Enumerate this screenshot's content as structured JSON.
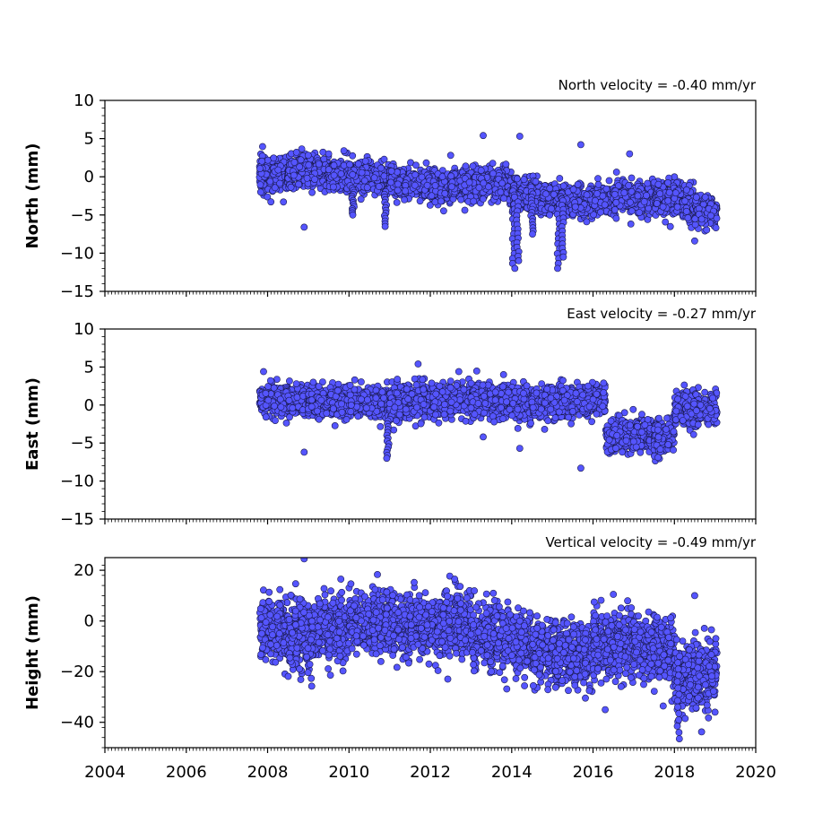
{
  "chart_data": [
    {
      "type": "scatter",
      "title": "North velocity = -0.40 mm/yr",
      "xlabel": "",
      "ylabel": "North (mm)",
      "xlim": [
        2004,
        2020
      ],
      "ylim": [
        -15,
        10
      ],
      "xticks": [
        2004,
        2006,
        2008,
        2010,
        2012,
        2014,
        2016,
        2018,
        2020
      ],
      "yticks": [
        10,
        5,
        0,
        -5,
        -10,
        -15
      ],
      "ytick_labels": [
        "10",
        "5",
        "0",
        "−5",
        "−10",
        "−15"
      ],
      "marker_color": "#5555ff",
      "marker_edge": "#1a1a4d",
      "segments": [
        {
          "x0": 2007.8,
          "x1": 2008.5,
          "y0": 0.3,
          "y1": 0.6,
          "spread": 1.1
        },
        {
          "x0": 2008.5,
          "x1": 2009.5,
          "y0": 0.6,
          "y1": 0.8,
          "spread": 1.0
        },
        {
          "x0": 2009.5,
          "x1": 2011.0,
          "y0": 0.5,
          "y1": -0.5,
          "spread": 1.0
        },
        {
          "x0": 2011.0,
          "x1": 2012.5,
          "y0": -0.5,
          "y1": -1.5,
          "spread": 1.0
        },
        {
          "x0": 2012.5,
          "x1": 2014.0,
          "y0": -1.2,
          "y1": -0.8,
          "spread": 1.1
        },
        {
          "x0": 2014.0,
          "x1": 2015.2,
          "y0": -2.2,
          "y1": -2.8,
          "spread": 1.0
        },
        {
          "x0": 2015.2,
          "x1": 2016.5,
          "y0": -3.5,
          "y1": -3.0,
          "spread": 1.0
        },
        {
          "x0": 2016.5,
          "x1": 2017.5,
          "y0": -2.5,
          "y1": -3.0,
          "spread": 1.1
        },
        {
          "x0": 2017.5,
          "x1": 2018.5,
          "y0": -2.5,
          "y1": -3.5,
          "spread": 1.1
        },
        {
          "x0": 2018.5,
          "x1": 2019.05,
          "y0": -4.0,
          "y1": -4.8,
          "spread": 1.0
        }
      ],
      "spikes": [
        {
          "x": 2010.1,
          "low": -5.0
        },
        {
          "x": 2010.9,
          "low": -6.5
        },
        {
          "x": 2014.05,
          "low": -12.0
        },
        {
          "x": 2014.15,
          "low": -11.0
        },
        {
          "x": 2014.5,
          "low": -7.5
        },
        {
          "x": 2015.15,
          "low": -12.0
        },
        {
          "x": 2015.25,
          "low": -10.5
        }
      ],
      "outliers": [
        [
          2013.3,
          5.4
        ],
        [
          2014.2,
          5.3
        ],
        [
          2015.7,
          4.2
        ],
        [
          2016.9,
          3.0
        ],
        [
          2008.9,
          -6.6
        ],
        [
          2018.5,
          -8.4
        ],
        [
          2009.5,
          3.0
        ],
        [
          2012.5,
          2.8
        ]
      ]
    },
    {
      "type": "scatter",
      "title": "East velocity = -0.27 mm/yr",
      "xlabel": "",
      "ylabel": "East (mm)",
      "xlim": [
        2004,
        2020
      ],
      "ylim": [
        -15,
        10
      ],
      "xticks": [
        2004,
        2006,
        2008,
        2010,
        2012,
        2014,
        2016,
        2018,
        2020
      ],
      "yticks": [
        10,
        5,
        0,
        -5,
        -10,
        -15
      ],
      "ytick_labels": [
        "10",
        "5",
        "0",
        "−5",
        "−10",
        "−15"
      ],
      "marker_color": "#5555ff",
      "marker_edge": "#1a1a4d",
      "segments": [
        {
          "x0": 2007.8,
          "x1": 2009.0,
          "y0": 0.8,
          "y1": 0.5,
          "spread": 1.0
        },
        {
          "x0": 2009.0,
          "x1": 2011.0,
          "y0": 0.5,
          "y1": 0.3,
          "spread": 1.0
        },
        {
          "x0": 2011.0,
          "x1": 2013.0,
          "y0": 0.3,
          "y1": 0.8,
          "spread": 1.1
        },
        {
          "x0": 2013.0,
          "x1": 2014.5,
          "y0": 0.8,
          "y1": 0.2,
          "spread": 1.1
        },
        {
          "x0": 2014.5,
          "x1": 2016.3,
          "y0": 0.3,
          "y1": 0.5,
          "spread": 1.0
        },
        {
          "x0": 2016.3,
          "x1": 2017.5,
          "y0": -4.0,
          "y1": -4.2,
          "spread": 1.0
        },
        {
          "x0": 2017.5,
          "x1": 2018.0,
          "y0": -4.2,
          "y1": -3.8,
          "spread": 1.0
        },
        {
          "x0": 2018.0,
          "x1": 2019.05,
          "y0": -0.8,
          "y1": -0.5,
          "spread": 1.0
        }
      ],
      "spikes": [
        {
          "x": 2010.95,
          "low": -7.0
        }
      ],
      "outliers": [
        [
          2007.9,
          4.4
        ],
        [
          2011.7,
          5.4
        ],
        [
          2012.7,
          4.4
        ],
        [
          2013.8,
          4.0
        ],
        [
          2008.9,
          -6.2
        ],
        [
          2015.7,
          -8.3
        ],
        [
          2014.2,
          -5.7
        ],
        [
          2013.3,
          -4.2
        ]
      ]
    },
    {
      "type": "scatter",
      "title": "Vertical velocity = -0.49 mm/yr",
      "xlabel": "",
      "ylabel": "Height (mm)",
      "xlim": [
        2004,
        2020
      ],
      "ylim": [
        -50,
        25
      ],
      "xticks": [
        2004,
        2006,
        2008,
        2010,
        2012,
        2014,
        2016,
        2018,
        2020
      ],
      "xtick_labels": [
        "2004",
        "2006",
        "2008",
        "2010",
        "2012",
        "2014",
        "2016",
        "2018",
        "2020"
      ],
      "yticks": [
        20,
        0,
        -20,
        -40
      ],
      "ytick_labels": [
        "20",
        "0",
        "−20",
        "−40"
      ],
      "marker_color": "#5555ff",
      "marker_edge": "#1a1a4d",
      "segments": [
        {
          "x0": 2007.8,
          "x1": 2008.5,
          "y0": -2.0,
          "y1": -4.0,
          "spread": 6.0
        },
        {
          "x0": 2008.5,
          "x1": 2010.0,
          "y0": -5.0,
          "y1": -3.0,
          "spread": 6.5
        },
        {
          "x0": 2010.0,
          "x1": 2011.5,
          "y0": 1.0,
          "y1": -2.0,
          "spread": 6.0
        },
        {
          "x0": 2011.5,
          "x1": 2013.0,
          "y0": -2.0,
          "y1": -1.0,
          "spread": 6.0
        },
        {
          "x0": 2013.0,
          "x1": 2014.5,
          "y0": -5.0,
          "y1": -8.0,
          "spread": 6.0
        },
        {
          "x0": 2014.5,
          "x1": 2016.0,
          "y0": -12.0,
          "y1": -14.0,
          "spread": 6.0
        },
        {
          "x0": 2016.0,
          "x1": 2017.0,
          "y0": -8.0,
          "y1": -10.0,
          "spread": 6.5
        },
        {
          "x0": 2017.0,
          "x1": 2018.0,
          "y0": -10.0,
          "y1": -12.0,
          "spread": 6.0
        },
        {
          "x0": 2018.0,
          "x1": 2019.05,
          "y0": -22.0,
          "y1": -20.0,
          "spread": 6.5
        }
      ],
      "spikes": [
        {
          "x": 2018.1,
          "low": -46.5
        }
      ],
      "outliers": [
        [
          2008.9,
          24.5
        ],
        [
          2010.7,
          18.3
        ],
        [
          2009.8,
          16.5
        ],
        [
          2012.6,
          16.5
        ],
        [
          2018.5,
          10.0
        ],
        [
          2016.5,
          10.5
        ],
        [
          2016.3,
          -35.0
        ],
        [
          2019.0,
          -36.0
        ]
      ]
    }
  ]
}
